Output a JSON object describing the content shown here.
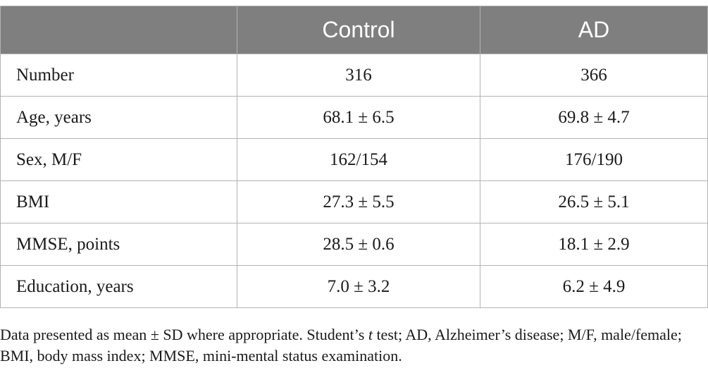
{
  "table": {
    "headers": [
      "",
      "Control",
      "AD"
    ],
    "rows": [
      {
        "label": "Number",
        "control": "316",
        "ad": "366"
      },
      {
        "label": "Age, years",
        "control": "68.1 ± 6.5",
        "ad": "69.8 ± 4.7"
      },
      {
        "label": "Sex, M/F",
        "control": "162/154",
        "ad": "176/190"
      },
      {
        "label": "BMI",
        "control": "27.3 ± 5.5",
        "ad": "26.5 ± 5.1"
      },
      {
        "label": "MMSE, points",
        "control": "28.5 ± 0.6",
        "ad": "18.1 ± 2.9"
      },
      {
        "label": "Education, years",
        "control": "7.0 ± 3.2",
        "ad": "6.2 ± 4.9"
      }
    ]
  },
  "footnote": {
    "before_italic": "Data presented as mean ± SD where appropriate. Student’s ",
    "italic": "t",
    "after_italic": " test; AD, Alzheimer’s disease; M/F, male/female; BMI, body mass index; MMSE, mini-mental status examination."
  },
  "colors": {
    "header_background": "#7f7f7f",
    "header_text": "#ffffff",
    "border": "#b3b3b3"
  }
}
